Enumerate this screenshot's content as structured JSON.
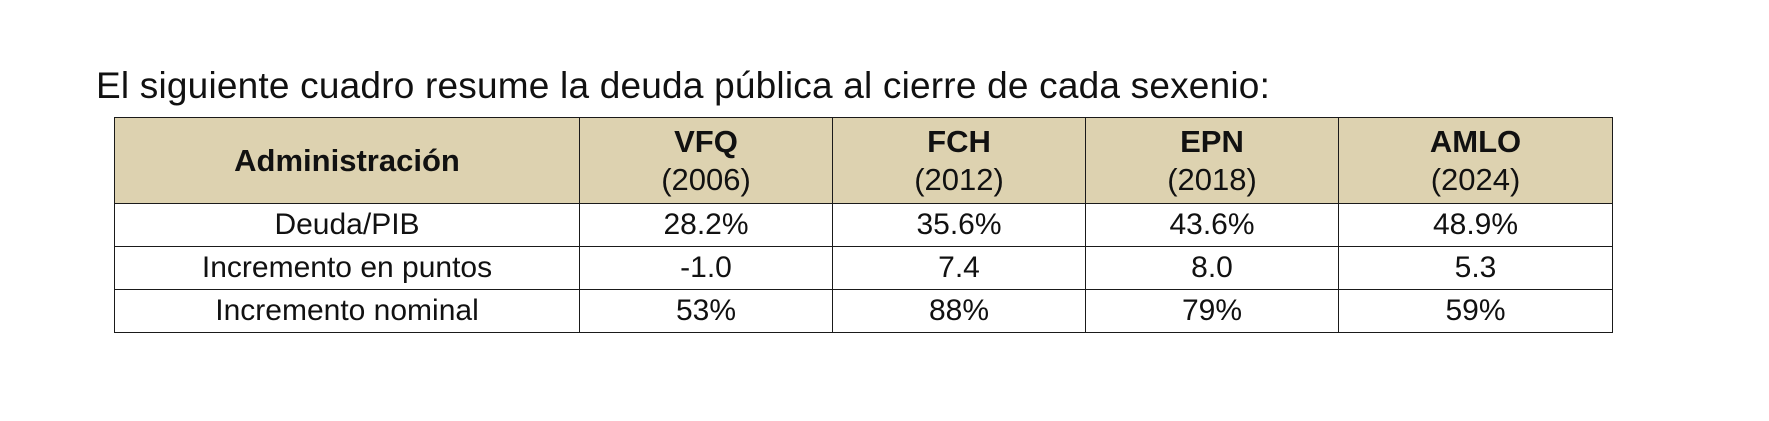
{
  "intro_text": "El siguiente cuadro resume la deuda pública al cierre de cada sexenio:",
  "table": {
    "header_label": "Administración",
    "columns": [
      {
        "abbr": "VFQ",
        "year": "(2006)"
      },
      {
        "abbr": "FCH",
        "year": "(2012)"
      },
      {
        "abbr": "EPN",
        "year": "(2018)"
      },
      {
        "abbr": "AMLO",
        "year": "(2024)"
      }
    ],
    "rows": [
      {
        "label": "Deuda/PIB",
        "values": [
          "28.2%",
          "35.6%",
          "43.6%",
          "48.9%"
        ]
      },
      {
        "label": "Incremento en puntos",
        "values": [
          "-1.0",
          "7.4",
          "8.0",
          "5.3"
        ]
      },
      {
        "label": "Incremento nominal",
        "values": [
          "53%",
          "88%",
          "79%",
          "59%"
        ]
      }
    ],
    "header_background": "#ddd2b0"
  }
}
